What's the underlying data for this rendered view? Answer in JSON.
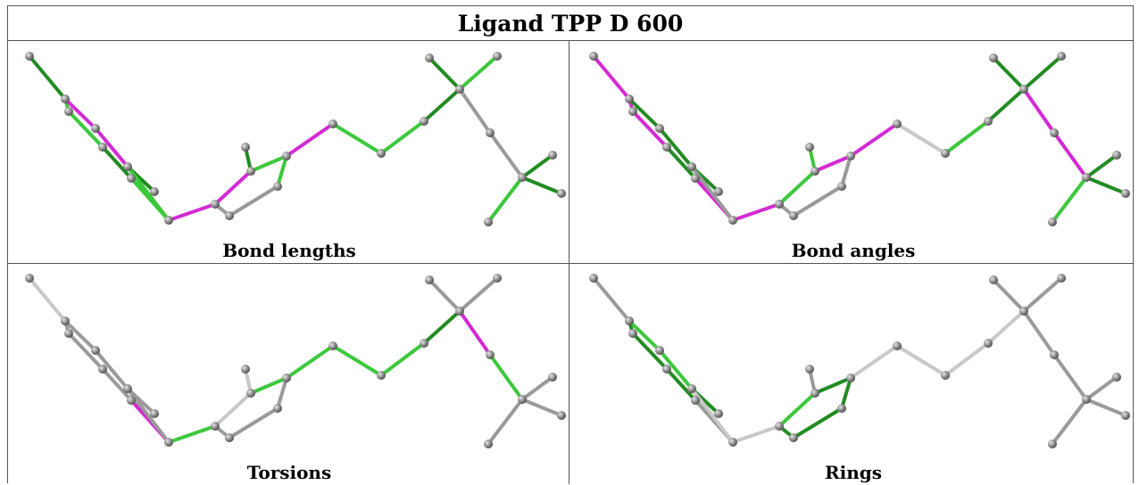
{
  "title": "Ligand TPP D 600",
  "panels": [
    {
      "label": "Bond lengths"
    },
    {
      "label": "Bond angles"
    },
    {
      "label": "Torsions"
    },
    {
      "label": "Rings"
    }
  ],
  "colors": {
    "grey": "#9a9a9a",
    "light": "#c8c8c8",
    "green": "#3cc83c",
    "dark": "#228b22",
    "magenta": "#d42ad4"
  }
}
